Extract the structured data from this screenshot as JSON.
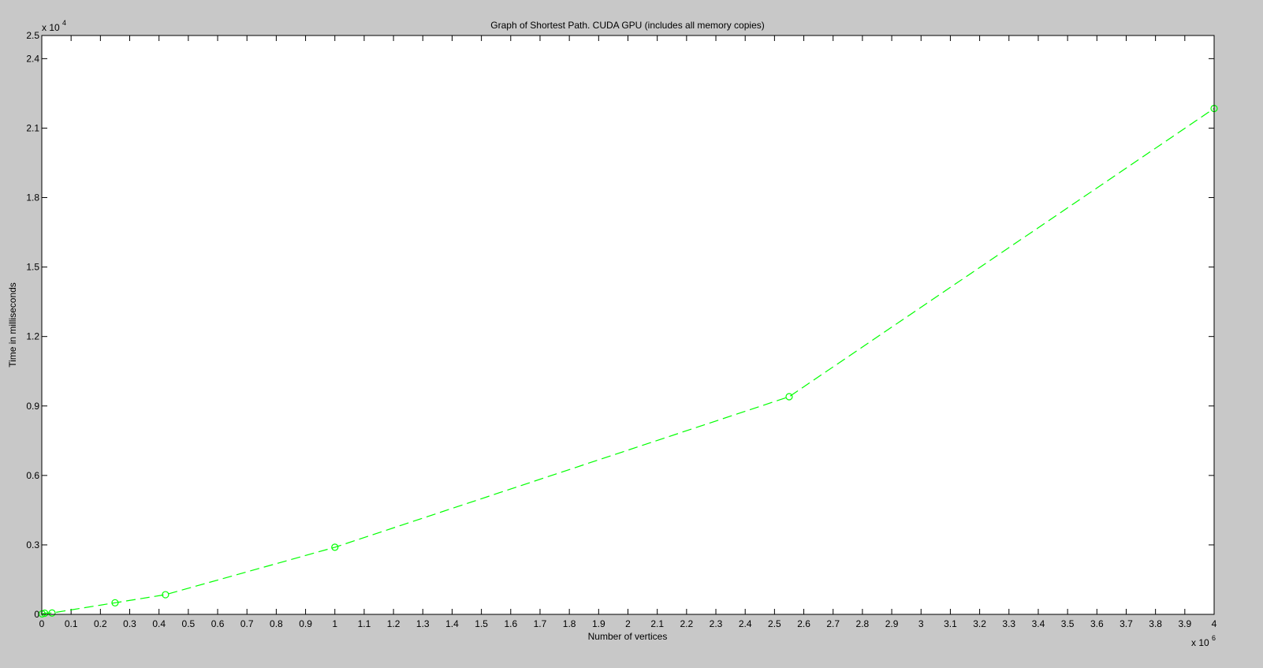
{
  "window": {
    "background_color": "#c8c8c8",
    "axes_background_color": "#ffffff"
  },
  "chart_data": {
    "type": "line",
    "title": "Graph of Shortest Path. CUDA GPU (includes all memory copies)",
    "xlabel": "Number of vertices",
    "ylabel": "Time in milliseconds",
    "x_exponent_label": {
      "base": "x 10",
      "exp": "6"
    },
    "y_exponent_label": {
      "base": "x 10",
      "exp": "4"
    },
    "xlim": [
      0,
      4000000
    ],
    "ylim": [
      0,
      25000
    ],
    "x_tick_values": [
      0,
      100000,
      200000,
      300000,
      400000,
      500000,
      600000,
      700000,
      800000,
      900000,
      1000000,
      1100000,
      1200000,
      1300000,
      1400000,
      1500000,
      1600000,
      1700000,
      1800000,
      1900000,
      2000000,
      2100000,
      2200000,
      2300000,
      2400000,
      2500000,
      2600000,
      2700000,
      2800000,
      2900000,
      3000000,
      3100000,
      3200000,
      3300000,
      3400000,
      3500000,
      3600000,
      3700000,
      3800000,
      3900000,
      4000000
    ],
    "x_tick_labels": [
      "0",
      "0.1",
      "0.2",
      "0.3",
      "0.4",
      "0.5",
      "0.6",
      "0.7",
      "0.8",
      "0.9",
      "1",
      "1.1",
      "1.2",
      "1.3",
      "1.4",
      "1.5",
      "1.6",
      "1.7",
      "1.8",
      "1.9",
      "2",
      "2.1",
      "2.2",
      "2.3",
      "2.4",
      "2.5",
      "2.6",
      "2.7",
      "2.8",
      "2.9",
      "3",
      "3.1",
      "3.2",
      "3.3",
      "3.4",
      "3.5",
      "3.6",
      "3.7",
      "3.8",
      "3.9",
      "4"
    ],
    "y_tick_values": [
      0,
      3000,
      6000,
      9000,
      12000,
      15000,
      18000,
      21000,
      24000,
      25000
    ],
    "y_tick_labels": [
      "0",
      "0.3",
      "0.6",
      "0.9",
      "1.2",
      "1.5",
      "1.8",
      "2.1",
      "2.4",
      "2.5"
    ],
    "grid": false,
    "legend": null,
    "series": [
      {
        "color": "#00ff00",
        "line_style": "dashed",
        "marker": "circle",
        "x": [
          1000,
          10000,
          35000,
          250000,
          422000,
          1000000,
          2550000,
          4000000
        ],
        "y": [
          20,
          50,
          60,
          500,
          850,
          2900,
          9400,
          21850
        ]
      }
    ]
  }
}
